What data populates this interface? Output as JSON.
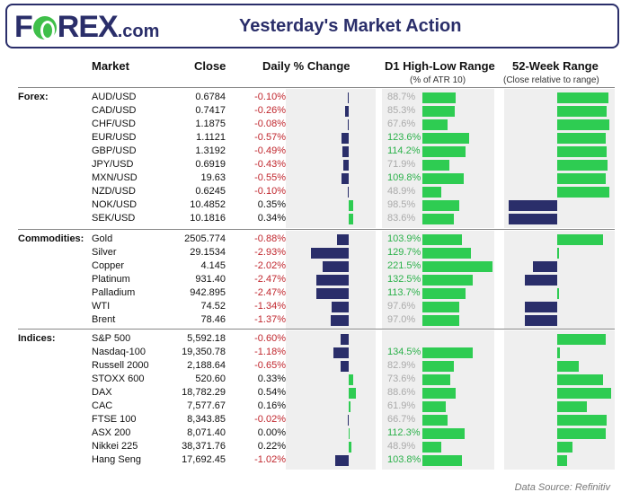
{
  "header": {
    "logo_prefix": "F",
    "logo_suffix": "REX",
    "logo_domain": ".com",
    "title": "Yesterday's Market Action"
  },
  "columns": {
    "market": "Market",
    "close": "Close",
    "daily": "Daily % Change",
    "d1": "D1 High-Low Range",
    "d1_sub": "(% of ATR 10)",
    "wk52": "52-Week Range",
    "wk52_sub": "(Close relative to range)"
  },
  "colors": {
    "navy": "#2a2e6a",
    "green": "#2ecc52",
    "negative_text": "#c0262d",
    "atr_high": "#2bb14a",
    "atr_low": "#aaaaaa"
  },
  "groups": [
    {
      "label": "Forex:",
      "rows": [
        {
          "market": "AUD/USD",
          "close": "0.6784",
          "change": "-0.10%",
          "chg": -0.1,
          "atr": "88.7%",
          "atr_v": 88.7,
          "pos52": 0.95
        },
        {
          "market": "CAD/USD",
          "close": "0.7417",
          "change": "-0.26%",
          "chg": -0.26,
          "atr": "85.3%",
          "atr_v": 85.3,
          "pos52": 0.92
        },
        {
          "market": "CHF/USD",
          "close": "1.1875",
          "change": "-0.08%",
          "chg": -0.08,
          "atr": "67.6%",
          "atr_v": 67.6,
          "pos52": 0.97
        },
        {
          "market": "EUR/USD",
          "close": "1.1121",
          "change": "-0.57%",
          "chg": -0.57,
          "atr": "123.6%",
          "atr_v": 123.6,
          "pos52": 0.9
        },
        {
          "market": "GBP/USD",
          "close": "1.3192",
          "change": "-0.49%",
          "chg": -0.49,
          "atr": "114.2%",
          "atr_v": 114.2,
          "pos52": 0.91
        },
        {
          "market": "JPY/USD",
          "close": "0.6919",
          "change": "-0.43%",
          "chg": -0.43,
          "atr": "71.9%",
          "atr_v": 71.9,
          "pos52": 0.93
        },
        {
          "market": "MXN/USD",
          "close": "19.63",
          "change": "-0.55%",
          "chg": -0.55,
          "atr": "109.8%",
          "atr_v": 109.8,
          "pos52": 0.9
        },
        {
          "market": "NZD/USD",
          "close": "0.6245",
          "change": "-0.10%",
          "chg": -0.1,
          "atr": "48.9%",
          "atr_v": 48.9,
          "pos52": 0.96
        },
        {
          "market": "NOK/USD",
          "close": "10.4852",
          "change": "0.35%",
          "chg": 0.35,
          "atr": "98.5%",
          "atr_v": 98.5,
          "pos52": -0.9
        },
        {
          "market": "SEK/USD",
          "close": "10.1816",
          "change": "0.34%",
          "chg": 0.34,
          "atr": "83.6%",
          "atr_v": 83.6,
          "pos52": -0.9
        }
      ]
    },
    {
      "label": "Commodities:",
      "rows": [
        {
          "market": "Gold",
          "close": "2505.774",
          "change": "-0.88%",
          "chg": -0.88,
          "atr": "103.9%",
          "atr_v": 103.9,
          "pos52": 0.85
        },
        {
          "market": "Silver",
          "close": "29.1534",
          "change": "-2.93%",
          "chg": -2.93,
          "atr": "129.7%",
          "atr_v": 129.7,
          "pos52": 0.04
        },
        {
          "market": "Copper",
          "close": "4.145",
          "change": "-2.02%",
          "chg": -2.02,
          "atr": "221.5%",
          "atr_v": 221.5,
          "pos52": -0.45
        },
        {
          "market": "Platinum",
          "close": "931.40",
          "change": "-2.47%",
          "chg": -2.47,
          "atr": "132.5%",
          "atr_v": 132.5,
          "pos52": -0.6
        },
        {
          "market": "Palladium",
          "close": "942.895",
          "change": "-2.47%",
          "chg": -2.47,
          "atr": "113.7%",
          "atr_v": 113.7,
          "pos52": 0.04
        },
        {
          "market": "WTI",
          "close": "74.52",
          "change": "-1.34%",
          "chg": -1.34,
          "atr": "97.6%",
          "atr_v": 97.6,
          "pos52": -0.6
        },
        {
          "market": "Brent",
          "close": "78.46",
          "change": "-1.37%",
          "chg": -1.37,
          "atr": "97.0%",
          "atr_v": 97.0,
          "pos52": -0.6
        }
      ]
    },
    {
      "label": "Indices:",
      "rows": [
        {
          "market": "S&P 500",
          "close": "5,592.18",
          "change": "-0.60%",
          "chg": -0.6,
          "atr": "",
          "atr_v": 0,
          "pos52": 0.9
        },
        {
          "market": "Nasdaq-100",
          "close": "19,350.78",
          "change": "-1.18%",
          "chg": -1.18,
          "atr": "134.5%",
          "atr_v": 134.5,
          "pos52": 0.05
        },
        {
          "market": "Russell 2000",
          "close": "2,188.64",
          "change": "-0.65%",
          "chg": -0.65,
          "atr": "82.9%",
          "atr_v": 82.9,
          "pos52": 0.4
        },
        {
          "market": "STOXX 600",
          "close": "520.60",
          "change": "0.33%",
          "chg": 0.33,
          "atr": "73.6%",
          "atr_v": 73.6,
          "pos52": 0.85
        },
        {
          "market": "DAX",
          "close": "18,782.29",
          "change": "0.54%",
          "chg": 0.54,
          "atr": "88.6%",
          "atr_v": 88.6,
          "pos52": 1.0
        },
        {
          "market": "CAC",
          "close": "7,577.67",
          "change": "0.16%",
          "chg": 0.16,
          "atr": "61.9%",
          "atr_v": 61.9,
          "pos52": 0.55
        },
        {
          "market": "FTSE 100",
          "close": "8,343.85",
          "change": "-0.02%",
          "chg": -0.02,
          "atr": "66.7%",
          "atr_v": 66.7,
          "pos52": 0.92
        },
        {
          "market": "ASX 200",
          "close": "8,071.40",
          "change": "0.00%",
          "chg": 0.0,
          "atr": "112.3%",
          "atr_v": 112.3,
          "pos52": 0.9
        },
        {
          "market": "Nikkei 225",
          "close": "38,371.76",
          "change": "0.22%",
          "chg": 0.22,
          "atr": "48.9%",
          "atr_v": 48.9,
          "pos52": 0.28
        },
        {
          "market": "Hang Seng",
          "close": "17,692.45",
          "change": "-1.02%",
          "chg": -1.02,
          "atr": "103.8%",
          "atr_v": 103.8,
          "pos52": 0.18
        }
      ]
    }
  ],
  "footer": {
    "source": "Data Source: Refinitiv"
  }
}
